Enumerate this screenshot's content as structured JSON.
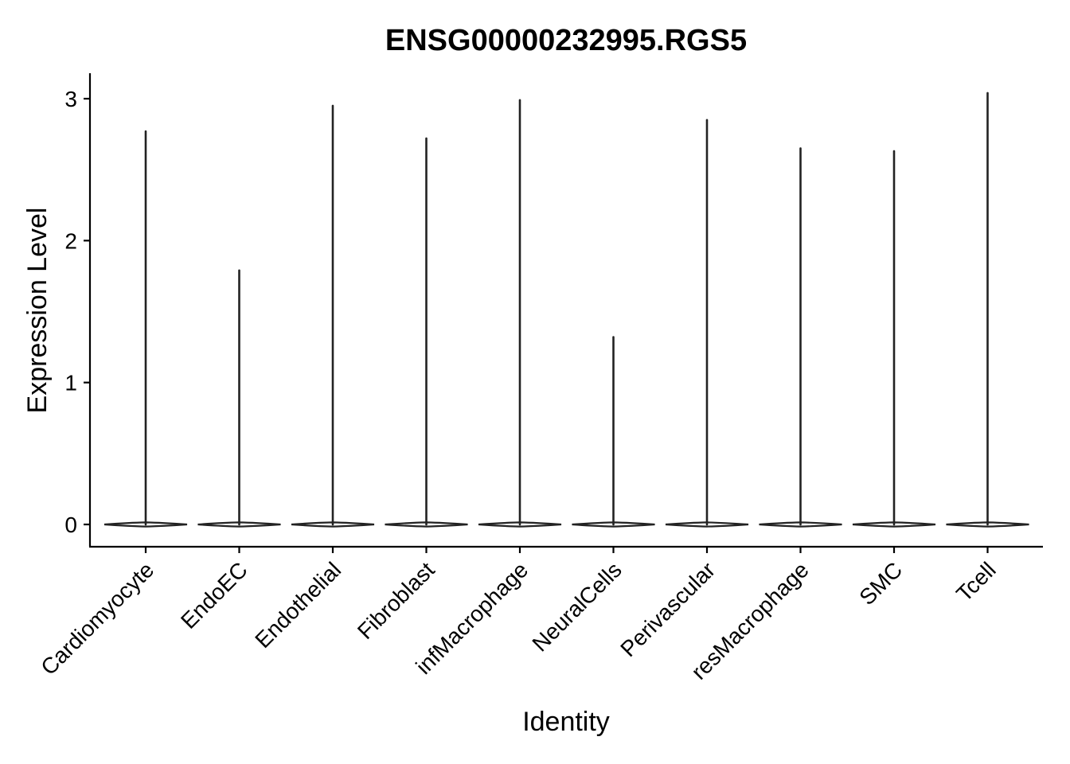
{
  "chart_data": {
    "type": "violin",
    "title": "ENSG00000232995.RGS5",
    "xlabel": "Identity",
    "ylabel": "Expression Level",
    "ylim": [
      -0.15,
      3.2
    ],
    "yticks": [
      "0",
      "1",
      "2",
      "3"
    ],
    "ytick_values": [
      0,
      1,
      2,
      3
    ],
    "grid": false,
    "legend": "none",
    "categories": [
      "Cardiomyocyte",
      "EndoEC",
      "Endothelial",
      "Fibroblast",
      "infMacrophage",
      "NeuralCells",
      "Perivascular",
      "resMacrophage",
      "SMC",
      "Tcell"
    ],
    "max_values": [
      2.77,
      1.79,
      2.95,
      2.72,
      2.99,
      1.32,
      2.85,
      2.65,
      2.63,
      3.04
    ],
    "median_values": [
      0,
      0,
      0,
      0,
      0,
      0,
      0,
      0,
      0,
      0
    ]
  }
}
